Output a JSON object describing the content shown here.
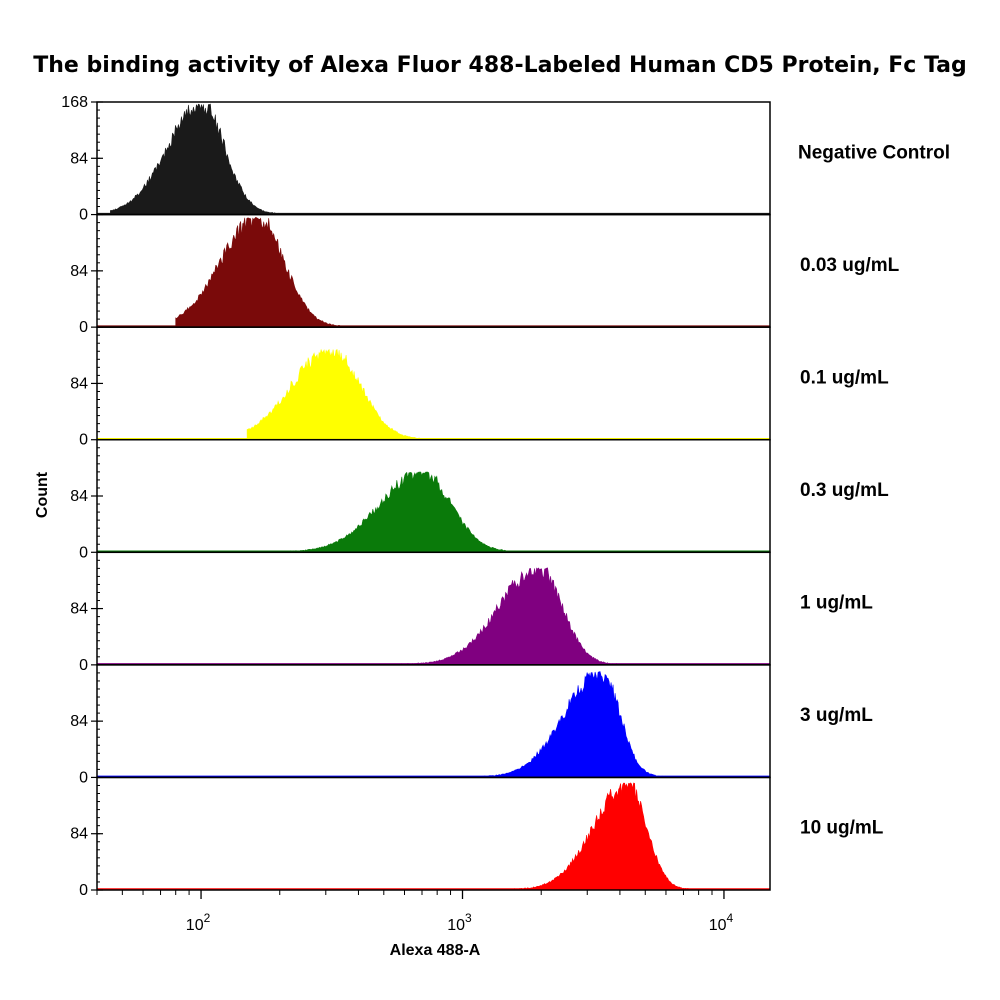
{
  "chart_data": {
    "type": "area",
    "title": "The binding activity of Alexa Fluor 488-Labeled Human CD5 Protein, Fc Tag",
    "xlabel": "Alexa 488-A",
    "ylabel": "Count",
    "x_scale": "log",
    "xlim": [
      40,
      15000
    ],
    "x_ticks": [
      {
        "value": 100,
        "base": "10",
        "exp": "2"
      },
      {
        "value": 1000,
        "base": "10",
        "exp": "3"
      },
      {
        "value": 10000,
        "base": "10",
        "exp": "4"
      }
    ],
    "ylim": [
      0,
      168
    ],
    "y_ticks": [
      {
        "value": 0,
        "label": "0"
      },
      {
        "value": 84,
        "label": "84"
      },
      {
        "value": 168,
        "label": "168"
      }
    ],
    "series": [
      {
        "name": "Negative Control",
        "color": "#1a1a1a",
        "peak_x": 100,
        "peak_y": 166,
        "sigma_left": 0.13,
        "sigma_right": 0.09,
        "tail_from": 45,
        "tail_to": 240
      },
      {
        "name": "0.03 ug/mL",
        "color": "#7a0a0a",
        "peak_x": 165,
        "peak_y": 164,
        "sigma_left": 0.14,
        "sigma_right": 0.1,
        "tail_from": 80,
        "tail_to": 400
      },
      {
        "name": "0.1 ug/mL",
        "color": "#ffff00",
        "peak_x": 315,
        "peak_y": 135,
        "sigma_left": 0.15,
        "sigma_right": 0.11,
        "tail_from": 150,
        "tail_to": 700
      },
      {
        "name": "0.3 ug/mL",
        "color": "#0a7a0a",
        "peak_x": 700,
        "peak_y": 120,
        "sigma_left": 0.16,
        "sigma_right": 0.11,
        "tail_from": 180,
        "tail_to": 1700
      },
      {
        "name": "1 ug/mL",
        "color": "#800080",
        "peak_x": 1950,
        "peak_y": 145,
        "sigma_left": 0.15,
        "sigma_right": 0.09,
        "tail_from": 230,
        "tail_to": 4500
      },
      {
        "name": "3 ug/mL",
        "color": "#0000ff",
        "peak_x": 3400,
        "peak_y": 158,
        "sigma_left": 0.14,
        "sigma_right": 0.07,
        "tail_from": 320,
        "tail_to": 6500
      },
      {
        "name": "10 ug/mL",
        "color": "#ff0000",
        "peak_x": 4300,
        "peak_y": 160,
        "sigma_left": 0.13,
        "sigma_right": 0.07,
        "tail_from": 330,
        "tail_to": 7500
      }
    ]
  }
}
